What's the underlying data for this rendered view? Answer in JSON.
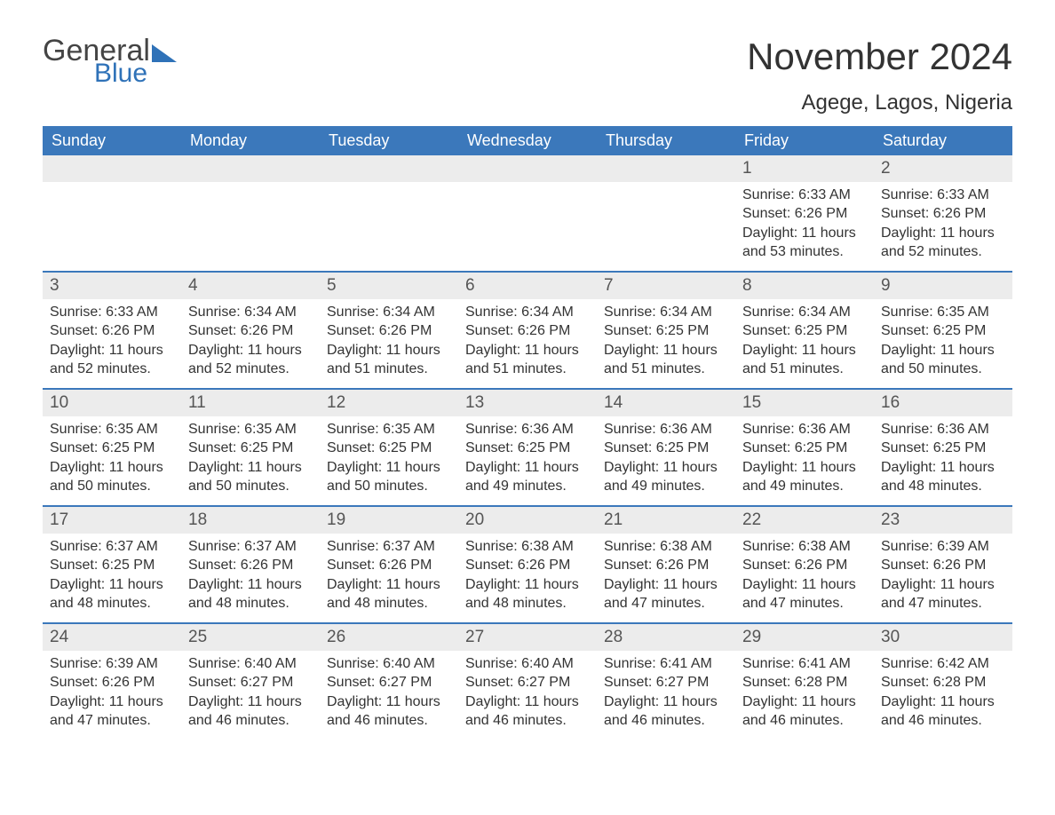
{
  "brand": {
    "general": "General",
    "blue": "Blue"
  },
  "title": "November 2024",
  "subtitle": "Agege, Lagos, Nigeria",
  "weekdays": [
    "Sunday",
    "Monday",
    "Tuesday",
    "Wednesday",
    "Thursday",
    "Friday",
    "Saturday"
  ],
  "colors": {
    "header_bg": "#3b78bb",
    "header_text": "#ffffff",
    "accent": "#2f72b8",
    "daynum_bg": "#ececec",
    "text": "#333333",
    "border": "#3b78bb",
    "background": "#ffffff"
  },
  "layout": {
    "first_weekday_index": 5,
    "days_in_month": 30
  },
  "days": {
    "1": {
      "sunrise": "6:33 AM",
      "sunset": "6:26 PM",
      "daylight": "11 hours and 53 minutes."
    },
    "2": {
      "sunrise": "6:33 AM",
      "sunset": "6:26 PM",
      "daylight": "11 hours and 52 minutes."
    },
    "3": {
      "sunrise": "6:33 AM",
      "sunset": "6:26 PM",
      "daylight": "11 hours and 52 minutes."
    },
    "4": {
      "sunrise": "6:34 AM",
      "sunset": "6:26 PM",
      "daylight": "11 hours and 52 minutes."
    },
    "5": {
      "sunrise": "6:34 AM",
      "sunset": "6:26 PM",
      "daylight": "11 hours and 51 minutes."
    },
    "6": {
      "sunrise": "6:34 AM",
      "sunset": "6:26 PM",
      "daylight": "11 hours and 51 minutes."
    },
    "7": {
      "sunrise": "6:34 AM",
      "sunset": "6:25 PM",
      "daylight": "11 hours and 51 minutes."
    },
    "8": {
      "sunrise": "6:34 AM",
      "sunset": "6:25 PM",
      "daylight": "11 hours and 51 minutes."
    },
    "9": {
      "sunrise": "6:35 AM",
      "sunset": "6:25 PM",
      "daylight": "11 hours and 50 minutes."
    },
    "10": {
      "sunrise": "6:35 AM",
      "sunset": "6:25 PM",
      "daylight": "11 hours and 50 minutes."
    },
    "11": {
      "sunrise": "6:35 AM",
      "sunset": "6:25 PM",
      "daylight": "11 hours and 50 minutes."
    },
    "12": {
      "sunrise": "6:35 AM",
      "sunset": "6:25 PM",
      "daylight": "11 hours and 50 minutes."
    },
    "13": {
      "sunrise": "6:36 AM",
      "sunset": "6:25 PM",
      "daylight": "11 hours and 49 minutes."
    },
    "14": {
      "sunrise": "6:36 AM",
      "sunset": "6:25 PM",
      "daylight": "11 hours and 49 minutes."
    },
    "15": {
      "sunrise": "6:36 AM",
      "sunset": "6:25 PM",
      "daylight": "11 hours and 49 minutes."
    },
    "16": {
      "sunrise": "6:36 AM",
      "sunset": "6:25 PM",
      "daylight": "11 hours and 48 minutes."
    },
    "17": {
      "sunrise": "6:37 AM",
      "sunset": "6:25 PM",
      "daylight": "11 hours and 48 minutes."
    },
    "18": {
      "sunrise": "6:37 AM",
      "sunset": "6:26 PM",
      "daylight": "11 hours and 48 minutes."
    },
    "19": {
      "sunrise": "6:37 AM",
      "sunset": "6:26 PM",
      "daylight": "11 hours and 48 minutes."
    },
    "20": {
      "sunrise": "6:38 AM",
      "sunset": "6:26 PM",
      "daylight": "11 hours and 48 minutes."
    },
    "21": {
      "sunrise": "6:38 AM",
      "sunset": "6:26 PM",
      "daylight": "11 hours and 47 minutes."
    },
    "22": {
      "sunrise": "6:38 AM",
      "sunset": "6:26 PM",
      "daylight": "11 hours and 47 minutes."
    },
    "23": {
      "sunrise": "6:39 AM",
      "sunset": "6:26 PM",
      "daylight": "11 hours and 47 minutes."
    },
    "24": {
      "sunrise": "6:39 AM",
      "sunset": "6:26 PM",
      "daylight": "11 hours and 47 minutes."
    },
    "25": {
      "sunrise": "6:40 AM",
      "sunset": "6:27 PM",
      "daylight": "11 hours and 46 minutes."
    },
    "26": {
      "sunrise": "6:40 AM",
      "sunset": "6:27 PM",
      "daylight": "11 hours and 46 minutes."
    },
    "27": {
      "sunrise": "6:40 AM",
      "sunset": "6:27 PM",
      "daylight": "11 hours and 46 minutes."
    },
    "28": {
      "sunrise": "6:41 AM",
      "sunset": "6:27 PM",
      "daylight": "11 hours and 46 minutes."
    },
    "29": {
      "sunrise": "6:41 AM",
      "sunset": "6:28 PM",
      "daylight": "11 hours and 46 minutes."
    },
    "30": {
      "sunrise": "6:42 AM",
      "sunset": "6:28 PM",
      "daylight": "11 hours and 46 minutes."
    }
  },
  "labels": {
    "sunrise": "Sunrise: ",
    "sunset": "Sunset: ",
    "daylight": "Daylight: "
  }
}
